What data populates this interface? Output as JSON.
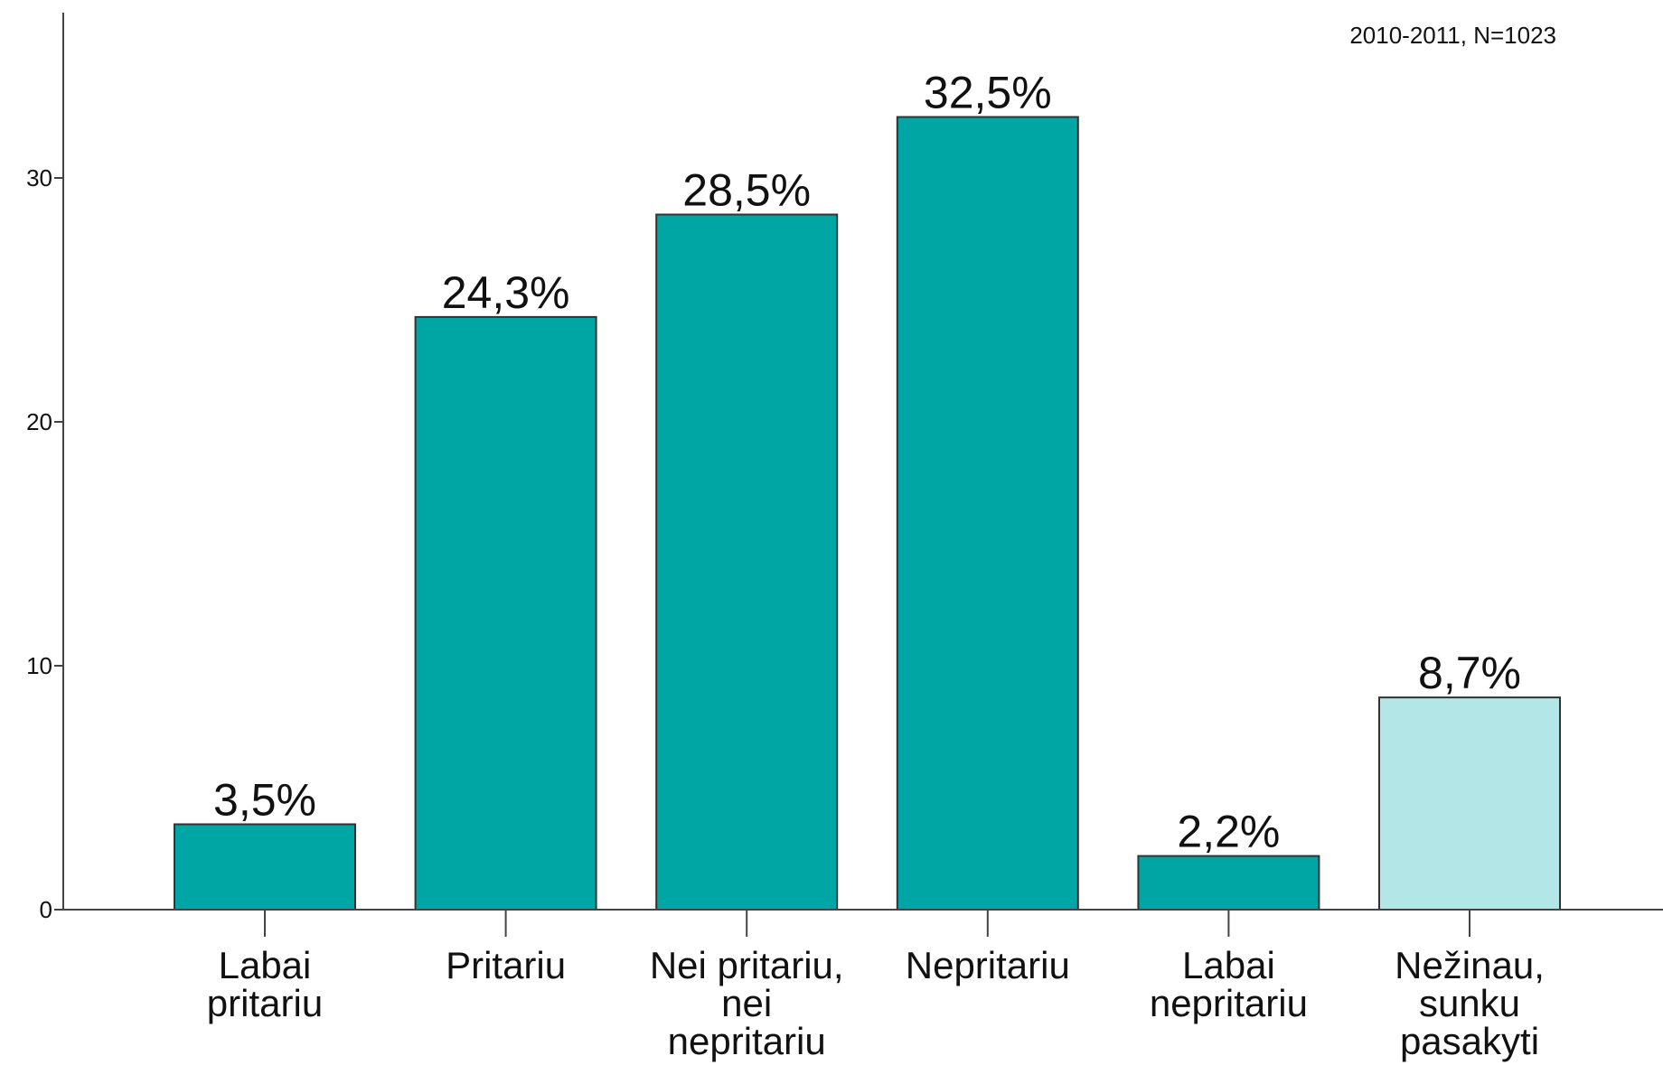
{
  "chart_data": {
    "type": "bar",
    "annotation": "2010-2011, N=1023",
    "title": "",
    "xlabel": "",
    "ylabel": "",
    "ylim": [
      0,
      36
    ],
    "yticks": [
      0,
      10,
      20,
      30
    ],
    "grid": false,
    "categories": [
      [
        "Labai",
        "pritariu"
      ],
      [
        "Pritariu"
      ],
      [
        "Nei pritariu,",
        "nei",
        "nepritariu"
      ],
      [
        "Nepritariu"
      ],
      [
        "Labai",
        "nepritariu"
      ],
      [
        "Nežinau,",
        "sunku",
        "pasakyti"
      ]
    ],
    "values": [
      3.5,
      24.3,
      28.5,
      32.5,
      2.2,
      8.7
    ],
    "value_labels": [
      "3,5%",
      "24,3%",
      "28,5%",
      "32,5%",
      "2,2%",
      "8,7%"
    ],
    "colors": [
      "#00A6A3",
      "#00A6A3",
      "#00A6A3",
      "#00A6A3",
      "#00A6A3",
      "#B3E6E6"
    ]
  }
}
